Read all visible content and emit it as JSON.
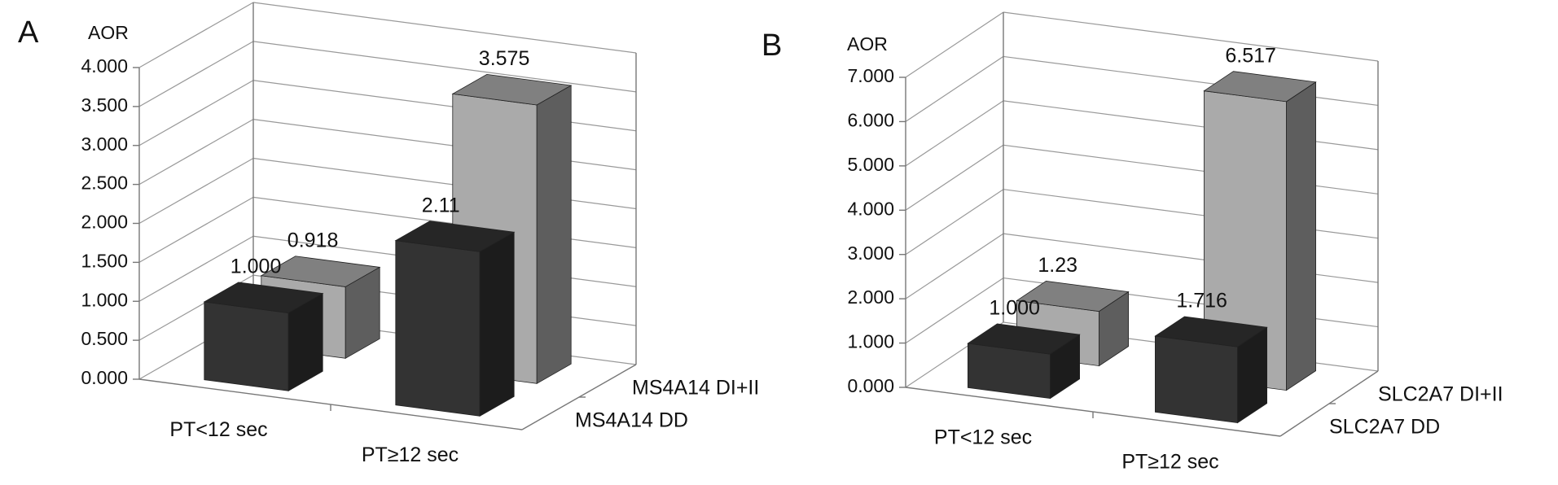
{
  "chart_data": [
    {
      "type": "bar3d",
      "panel_label": "A",
      "y_label": "AOR",
      "categories": [
        "PT<12 sec",
        "PT≥12 sec"
      ],
      "series": [
        {
          "name": "MS4A14 DD",
          "color": "#333333",
          "values": [
            1.0,
            2.11
          ],
          "value_labels": [
            "1.000",
            "2.11"
          ]
        },
        {
          "name": "MS4A14 DI+II",
          "color": "#aaaaaa",
          "values": [
            0.918,
            3.575
          ],
          "value_labels": [
            "0.918",
            "3.575"
          ]
        }
      ],
      "ylim": [
        0,
        4
      ],
      "yticks": [
        {
          "value": 0,
          "label": "0.000"
        },
        {
          "value": 0.5,
          "label": "0.500"
        },
        {
          "value": 1,
          "label": "1.000"
        },
        {
          "value": 1.5,
          "label": "1.500"
        },
        {
          "value": 2,
          "label": "2.000"
        },
        {
          "value": 2.5,
          "label": "2.500"
        },
        {
          "value": 3,
          "label": "3.000"
        },
        {
          "value": 3.5,
          "label": "3.500"
        },
        {
          "value": 4,
          "label": "4.000"
        }
      ],
      "grid": true
    },
    {
      "type": "bar3d",
      "panel_label": "B",
      "y_label": "AOR",
      "categories": [
        "PT<12 sec",
        "PT≥12 sec"
      ],
      "series": [
        {
          "name": "SLC2A7 DD",
          "color": "#333333",
          "values": [
            1.0,
            1.716
          ],
          "value_labels": [
            "1.000",
            "1.716"
          ]
        },
        {
          "name": "SLC2A7 DI+II",
          "color": "#aaaaaa",
          "values": [
            1.23,
            6.517
          ],
          "value_labels": [
            "1.23",
            "6.517"
          ]
        }
      ],
      "ylim": [
        0,
        7
      ],
      "yticks": [
        {
          "value": 0,
          "label": "0.000"
        },
        {
          "value": 1,
          "label": "1.000"
        },
        {
          "value": 2,
          "label": "2.000"
        },
        {
          "value": 3,
          "label": "3.000"
        },
        {
          "value": 4,
          "label": "4.000"
        },
        {
          "value": 5,
          "label": "5.000"
        },
        {
          "value": 6,
          "label": "6.000"
        },
        {
          "value": 7,
          "label": "7.000"
        }
      ],
      "grid": true
    }
  ]
}
